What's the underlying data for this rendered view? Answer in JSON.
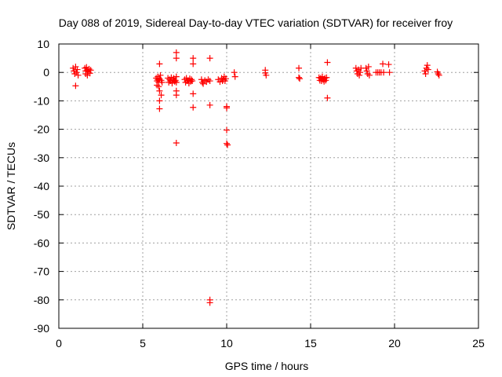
{
  "chart_data": {
    "type": "scatter",
    "title": "Day 088 of 2019, Sidereal Day-to-day VTEC variation (SDTVAR) for receiver froy",
    "xlabel": "GPS time / hours",
    "ylabel": "SDTVAR / TECUs",
    "xlim": [
      0,
      25
    ],
    "ylim": [
      -90,
      10
    ],
    "xticks": [
      "0",
      "5",
      "10",
      "15",
      "20",
      "25"
    ],
    "yticks": [
      "10",
      "0",
      "-10",
      "-20",
      "-30",
      "-40",
      "-50",
      "-60",
      "-70",
      "-80",
      "-90"
    ],
    "grid": true,
    "marker": "plus",
    "color": "#ff0000",
    "series": [
      {
        "name": "SDTVAR",
        "points": [
          [
            0.85,
            1.5
          ],
          [
            0.9,
            0.5
          ],
          [
            0.95,
            -0.5
          ],
          [
            1.0,
            2.0
          ],
          [
            1.0,
            -4.7
          ],
          [
            1.05,
            0.0
          ],
          [
            1.1,
            1.0
          ],
          [
            1.15,
            -1.0
          ],
          [
            1.55,
            1.5
          ],
          [
            1.6,
            0.5
          ],
          [
            1.6,
            -0.5
          ],
          [
            1.65,
            1.8
          ],
          [
            1.7,
            0.8
          ],
          [
            1.7,
            -1.0
          ],
          [
            1.75,
            0.2
          ],
          [
            1.8,
            1.2
          ],
          [
            1.85,
            -0.3
          ],
          [
            1.9,
            0.8
          ],
          [
            5.8,
            -2.0
          ],
          [
            5.85,
            -3.0
          ],
          [
            5.85,
            -4.5
          ],
          [
            5.9,
            -1.5
          ],
          [
            5.9,
            -2.5
          ],
          [
            5.95,
            -3.5
          ],
          [
            5.95,
            -5.0
          ],
          [
            6.0,
            -2.2
          ],
          [
            6.0,
            3.0
          ],
          [
            6.0,
            -6.5
          ],
          [
            6.0,
            -10.0
          ],
          [
            6.0,
            -12.8
          ],
          [
            6.05,
            -1.0
          ],
          [
            6.1,
            -2.8
          ],
          [
            6.1,
            -8.0
          ],
          [
            6.15,
            -3.5
          ],
          [
            6.5,
            -2.0
          ],
          [
            6.55,
            -3.5
          ],
          [
            6.6,
            -2.5
          ],
          [
            6.65,
            -3.0
          ],
          [
            6.7,
            -1.8
          ],
          [
            6.75,
            -3.8
          ],
          [
            6.8,
            -2.5
          ],
          [
            6.85,
            -2.0
          ],
          [
            6.9,
            -3.2
          ],
          [
            6.95,
            -2.8
          ],
          [
            7.0,
            -1.5
          ],
          [
            7.0,
            -3.5
          ],
          [
            7.0,
            7.0
          ],
          [
            7.0,
            5.0
          ],
          [
            7.0,
            -6.5
          ],
          [
            7.0,
            -8.0
          ],
          [
            7.0,
            -24.8
          ],
          [
            7.5,
            -2.5
          ],
          [
            7.55,
            -3.5
          ],
          [
            7.6,
            -2.0
          ],
          [
            7.65,
            -3.0
          ],
          [
            7.7,
            -2.8
          ],
          [
            7.75,
            -3.8
          ],
          [
            7.8,
            -2.2
          ],
          [
            7.85,
            -3.2
          ],
          [
            7.9,
            -2.5
          ],
          [
            7.95,
            -3.0
          ],
          [
            8.0,
            5.0
          ],
          [
            8.0,
            3.0
          ],
          [
            8.0,
            -7.5
          ],
          [
            8.0,
            -12.3
          ],
          [
            8.5,
            -2.5
          ],
          [
            8.55,
            -3.5
          ],
          [
            8.6,
            -4.0
          ],
          [
            8.7,
            -2.8
          ],
          [
            8.8,
            -3.3
          ],
          [
            8.9,
            -2.5
          ],
          [
            9.0,
            -3.0
          ],
          [
            9.0,
            5.0
          ],
          [
            9.0,
            -11.5
          ],
          [
            9.0,
            -80.0
          ],
          [
            9.0,
            -81.0
          ],
          [
            9.5,
            -2.5
          ],
          [
            9.6,
            -3.3
          ],
          [
            9.7,
            -2.0
          ],
          [
            9.75,
            -3.0
          ],
          [
            9.8,
            -2.5
          ],
          [
            9.85,
            -1.5
          ],
          [
            9.9,
            -3.0
          ],
          [
            9.95,
            -2.2
          ],
          [
            10.0,
            -12.0
          ],
          [
            10.0,
            -20.3
          ],
          [
            10.0,
            -25.0
          ],
          [
            10.05,
            -25.5
          ],
          [
            10.0,
            -12.5
          ],
          [
            10.45,
            0.0
          ],
          [
            10.5,
            -1.5
          ],
          [
            12.3,
            0.8
          ],
          [
            12.3,
            -0.2
          ],
          [
            12.35,
            -1.0
          ],
          [
            14.3,
            1.5
          ],
          [
            14.3,
            -1.8
          ],
          [
            14.35,
            -2.2
          ],
          [
            15.5,
            -1.8
          ],
          [
            15.55,
            -2.8
          ],
          [
            15.6,
            -2.0
          ],
          [
            15.65,
            -3.0
          ],
          [
            15.7,
            -1.5
          ],
          [
            15.75,
            -2.5
          ],
          [
            15.8,
            -3.2
          ],
          [
            15.85,
            -2.0
          ],
          [
            15.9,
            -2.8
          ],
          [
            15.95,
            -1.8
          ],
          [
            16.0,
            3.5
          ],
          [
            16.0,
            -9.0
          ],
          [
            17.7,
            1.5
          ],
          [
            17.75,
            0.5
          ],
          [
            17.8,
            -0.5
          ],
          [
            17.85,
            1.0
          ],
          [
            17.9,
            -1.0
          ],
          [
            17.95,
            0.0
          ],
          [
            18.0,
            1.5
          ],
          [
            18.3,
            1.5
          ],
          [
            18.35,
            0.5
          ],
          [
            18.4,
            -0.5
          ],
          [
            18.45,
            2.0
          ],
          [
            18.5,
            -1.0
          ],
          [
            18.9,
            0.0
          ],
          [
            19.0,
            0.0
          ],
          [
            19.1,
            0.0
          ],
          [
            19.2,
            0.0
          ],
          [
            19.3,
            3.0
          ],
          [
            19.35,
            0.0
          ],
          [
            19.65,
            2.8
          ],
          [
            19.7,
            0.0
          ],
          [
            21.8,
            0.5
          ],
          [
            21.85,
            -0.5
          ],
          [
            21.9,
            1.5
          ],
          [
            21.95,
            2.5
          ],
          [
            22.0,
            1.0
          ],
          [
            22.55,
            0.2
          ],
          [
            22.6,
            -0.5
          ],
          [
            22.65,
            -1.0
          ]
        ]
      }
    ]
  }
}
